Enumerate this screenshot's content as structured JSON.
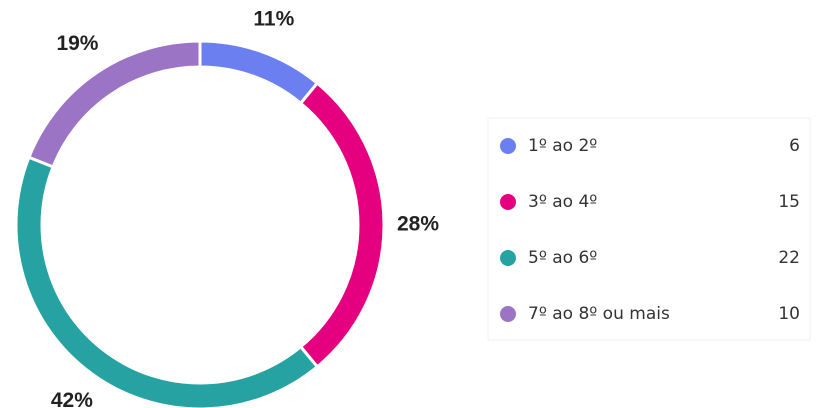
{
  "chart_data": {
    "type": "donut",
    "categories": [
      "1º ao 2º",
      "3º ao 4º",
      "5º ao 6º",
      "7º ao 8º ou mais"
    ],
    "values": [
      11,
      28,
      42,
      19
    ],
    "value_labels": [
      "11%",
      "28%",
      "42%",
      "19%"
    ],
    "counts": [
      6,
      15,
      22,
      10
    ],
    "colors": [
      "#6b7ff0",
      "#e5007f",
      "#27a2a3",
      "#9b74c6"
    ]
  }
}
